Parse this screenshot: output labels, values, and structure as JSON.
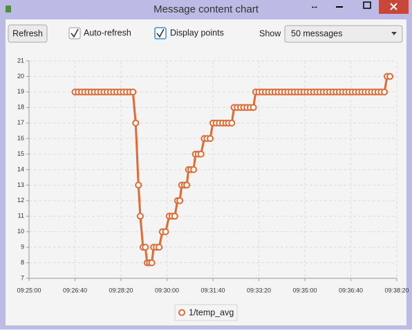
{
  "window": {
    "title": "Message content chart"
  },
  "toolbar": {
    "refresh": "Refresh",
    "checkboxes": [
      {
        "label": "Auto-refresh",
        "checked": true
      },
      {
        "label": "Display points",
        "checked": true
      }
    ],
    "show": {
      "label": "Show",
      "value": "50 messages"
    }
  },
  "chart_data": {
    "type": "line",
    "x": [
      "09:26:40",
      "09:26:47",
      "09:26:54",
      "09:27:01",
      "09:27:08",
      "09:27:15",
      "09:27:22",
      "09:27:29",
      "09:27:36",
      "09:27:43",
      "09:27:50",
      "09:27:57",
      "09:28:04",
      "09:28:11",
      "09:28:18",
      "09:28:25",
      "09:28:32",
      "09:28:39",
      "09:28:46",
      "09:28:52",
      "09:28:58",
      "09:29:02",
      "09:29:08",
      "09:29:13",
      "09:29:17",
      "09:29:22",
      "09:29:27",
      "09:29:31",
      "09:29:37",
      "09:29:43",
      "09:29:50",
      "09:29:57",
      "09:30:05",
      "09:30:11",
      "09:30:17",
      "09:30:23",
      "09:30:28",
      "09:30:32",
      "09:30:38",
      "09:30:43",
      "09:30:47",
      "09:30:52",
      "09:30:58",
      "09:31:02",
      "09:31:08",
      "09:31:14",
      "09:31:21",
      "09:31:27",
      "09:31:34",
      "09:31:40",
      "09:31:47",
      "09:31:54",
      "09:32:01",
      "09:32:08",
      "09:32:14",
      "09:32:21",
      "09:32:26",
      "09:32:33",
      "09:32:40",
      "09:32:47",
      "09:32:54",
      "09:33:01",
      "09:33:08",
      "09:33:13",
      "09:33:20",
      "09:33:27",
      "09:33:34",
      "09:33:41",
      "09:33:48",
      "09:33:55",
      "09:34:02",
      "09:34:09",
      "09:34:16",
      "09:34:23",
      "09:34:30",
      "09:34:37",
      "09:34:44",
      "09:34:51",
      "09:34:58",
      "09:35:05",
      "09:35:12",
      "09:35:19",
      "09:35:26",
      "09:35:33",
      "09:35:40",
      "09:35:47",
      "09:35:54",
      "09:36:01",
      "09:36:08",
      "09:36:15",
      "09:36:22",
      "09:36:29",
      "09:36:36",
      "09:36:43",
      "09:36:50",
      "09:36:57",
      "09:37:04",
      "09:37:11",
      "09:37:18",
      "09:37:25",
      "09:37:32",
      "09:37:39",
      "09:37:46",
      "09:37:53",
      "09:37:59",
      "09:38:05"
    ],
    "series": [
      {
        "name": "1/temp_avg",
        "color": "#de6a35",
        "values": [
          19,
          19,
          19,
          19,
          19,
          19,
          19,
          19,
          19,
          19,
          19,
          19,
          19,
          19,
          19,
          19,
          19,
          19,
          19,
          17,
          13,
          11,
          9,
          9,
          8,
          8,
          8,
          9,
          9,
          9,
          10,
          10,
          11,
          11,
          11,
          12,
          12,
          13,
          13,
          13,
          14,
          14,
          14,
          15,
          15,
          15,
          16,
          16,
          16,
          17,
          17,
          17,
          17,
          17,
          17,
          17,
          18,
          18,
          18,
          18,
          18,
          18,
          18,
          19,
          19,
          19,
          19,
          19,
          19,
          19,
          19,
          19,
          19,
          19,
          19,
          19,
          19,
          19,
          19,
          19,
          19,
          19,
          19,
          19,
          19,
          19,
          19,
          19,
          19,
          19,
          19,
          19,
          19,
          19,
          19,
          19,
          19,
          19,
          19,
          19,
          19,
          19,
          19,
          19,
          20,
          20
        ]
      }
    ],
    "xlim": [
      "09:25:00",
      "09:38:20"
    ],
    "xticks": [
      "09:25:00",
      "09:26:40",
      "09:28:20",
      "09:30:00",
      "09:31:40",
      "09:33:20",
      "09:35:00",
      "09:36:40",
      "09:38:20"
    ],
    "ylim": [
      7,
      21
    ],
    "yticks": [
      7,
      8,
      9,
      10,
      11,
      12,
      13,
      14,
      15,
      16,
      17,
      18,
      19,
      20,
      21
    ],
    "grid": true
  }
}
